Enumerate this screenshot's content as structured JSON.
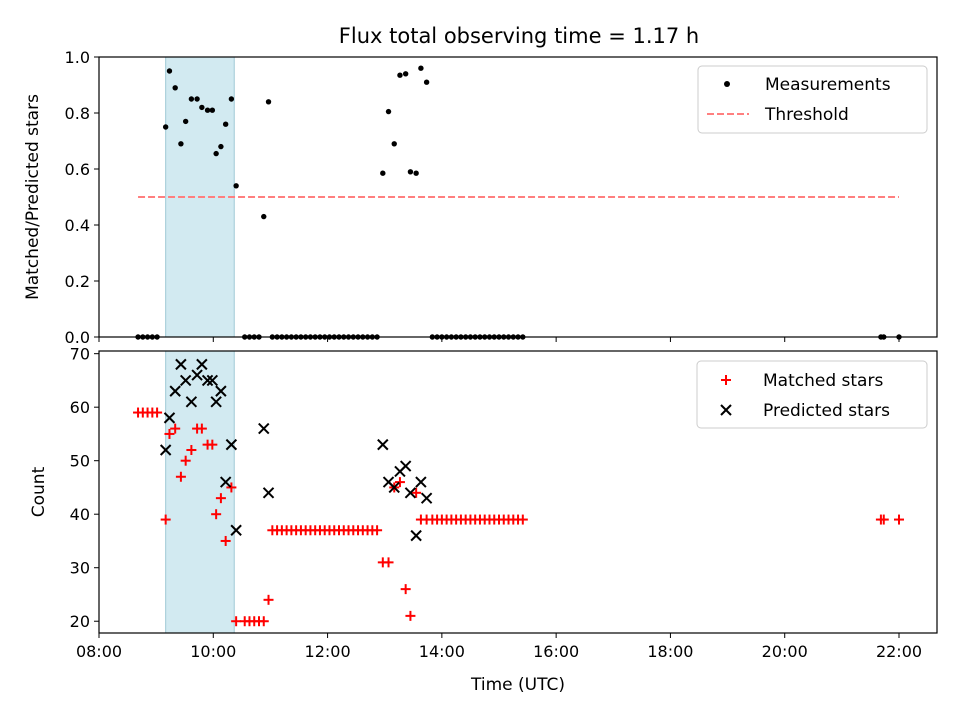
{
  "chart_data": [
    {
      "type": "scatter",
      "title": "Flux total observing time = 1.17 h",
      "xlabel": "",
      "ylabel": "Matched/Predicted stars",
      "ylim": [
        0.0,
        1.0
      ],
      "xlim": [
        "08:00",
        "22:00"
      ],
      "highlight_interval": {
        "start": "09:10",
        "end": "10:22",
        "color": "#add8e6"
      },
      "legend": "top-right",
      "series": [
        {
          "name": "Measurements",
          "marker": "dot",
          "color": "#000000",
          "x": [
            "08:41",
            "08:46",
            "08:51",
            "08:56",
            "09:01",
            "09:10",
            "09:14",
            "09:20",
            "09:26",
            "09:31",
            "09:37",
            "09:43",
            "09:48",
            "09:54",
            "09:59",
            "10:03",
            "10:08",
            "10:13",
            "10:19",
            "10:24",
            "10:33",
            "10:38",
            "10:43",
            "10:48",
            "10:53",
            "10:58",
            "11:02",
            "11:07",
            "11:12",
            "11:17",
            "11:22",
            "11:27",
            "11:32",
            "11:37",
            "11:42",
            "11:47",
            "11:52",
            "11:57",
            "12:02",
            "12:07",
            "12:12",
            "12:17",
            "12:22",
            "12:27",
            "12:32",
            "12:37",
            "12:42",
            "12:47",
            "12:52",
            "12:58",
            "13:04",
            "13:10",
            "13:16",
            "13:22",
            "13:27",
            "13:33",
            "13:38",
            "13:44",
            "13:50",
            "13:55",
            "14:00",
            "14:05",
            "14:10",
            "14:15",
            "14:20",
            "14:25",
            "14:30",
            "14:35",
            "14:40",
            "14:45",
            "14:50",
            "14:55",
            "15:00",
            "15:05",
            "15:10",
            "15:15",
            "15:20",
            "15:25",
            "21:41",
            "21:44",
            "22:00"
          ],
          "y": [
            0.0,
            0.0,
            0.0,
            0.0,
            0.0,
            0.75,
            0.95,
            0.89,
            0.69,
            0.77,
            0.85,
            0.85,
            0.82,
            0.81,
            0.81,
            0.655,
            0.68,
            0.76,
            0.85,
            0.54,
            0.0,
            0.0,
            0.0,
            0.0,
            0.43,
            0.84,
            0.0,
            0.0,
            0.0,
            0.0,
            0.0,
            0.0,
            0.0,
            0.0,
            0.0,
            0.0,
            0.0,
            0.0,
            0.0,
            0.0,
            0.0,
            0.0,
            0.0,
            0.0,
            0.0,
            0.0,
            0.0,
            0.0,
            0.0,
            0.585,
            0.805,
            0.69,
            0.935,
            0.94,
            0.59,
            0.585,
            0.96,
            0.91,
            0.0,
            0.0,
            0.0,
            0.0,
            0.0,
            0.0,
            0.0,
            0.0,
            0.0,
            0.0,
            0.0,
            0.0,
            0.0,
            0.0,
            0.0,
            0.0,
            0.0,
            0.0,
            0.0,
            0.0,
            0.0,
            0.0,
            0.0
          ]
        },
        {
          "name": "Threshold",
          "marker": "dashed-line",
          "color": "#ff7f7f",
          "x": [
            "08:41",
            "22:00"
          ],
          "y": [
            0.5,
            0.5
          ]
        }
      ],
      "yticks": [
        "0.0",
        "0.2",
        "0.4",
        "0.6",
        "0.8",
        "1.0"
      ]
    },
    {
      "type": "scatter",
      "title": "",
      "xlabel": "Time (UTC)",
      "ylabel": "Count",
      "ylim": [
        17.8,
        70.5
      ],
      "xlim": [
        "08:00",
        "22:00"
      ],
      "highlight_interval": {
        "start": "09:10",
        "end": "10:22",
        "color": "#add8e6"
      },
      "legend": "top-right",
      "series": [
        {
          "name": "Matched stars",
          "marker": "plus",
          "color": "#ff0000",
          "x": [
            "08:41",
            "08:46",
            "08:51",
            "08:56",
            "09:01",
            "09:10",
            "09:14",
            "09:20",
            "09:26",
            "09:31",
            "09:37",
            "09:43",
            "09:48",
            "09:54",
            "09:59",
            "10:03",
            "10:08",
            "10:13",
            "10:19",
            "10:24",
            "10:33",
            "10:38",
            "10:43",
            "10:48",
            "10:53",
            "10:58",
            "11:02",
            "11:07",
            "11:12",
            "11:17",
            "11:22",
            "11:27",
            "11:32",
            "11:37",
            "11:42",
            "11:47",
            "11:52",
            "11:57",
            "12:02",
            "12:07",
            "12:12",
            "12:17",
            "12:22",
            "12:27",
            "12:32",
            "12:37",
            "12:42",
            "12:47",
            "12:52",
            "12:58",
            "13:04",
            "13:10",
            "13:16",
            "13:22",
            "13:27",
            "13:33",
            "13:38",
            "13:44",
            "13:50",
            "13:55",
            "14:00",
            "14:05",
            "14:10",
            "14:15",
            "14:20",
            "14:25",
            "14:30",
            "14:35",
            "14:40",
            "14:45",
            "14:50",
            "14:55",
            "15:00",
            "15:05",
            "15:10",
            "15:15",
            "15:20",
            "15:25",
            "21:41",
            "21:44",
            "22:00"
          ],
          "y": [
            59,
            59,
            59,
            59,
            59,
            39,
            55,
            56,
            47,
            50,
            52,
            56,
            56,
            53,
            53,
            40,
            43,
            35,
            45,
            20,
            20,
            20,
            20,
            20,
            20,
            24,
            37,
            37,
            37,
            37,
            37,
            37,
            37,
            37,
            37,
            37,
            37,
            37,
            37,
            37,
            37,
            37,
            37,
            37,
            37,
            37,
            37,
            37,
            37,
            31,
            31,
            45,
            46,
            26,
            21,
            44,
            39,
            39,
            39,
            39,
            39,
            39,
            39,
            39,
            39,
            39,
            39,
            39,
            39,
            39,
            39,
            39,
            39,
            39,
            39,
            39,
            39,
            39,
            39,
            39,
            39
          ]
        },
        {
          "name": "Predicted stars",
          "marker": "x",
          "color": "#000000",
          "x": [
            "09:10",
            "09:14",
            "09:20",
            "09:26",
            "09:31",
            "09:37",
            "09:43",
            "09:48",
            "09:54",
            "09:59",
            "10:03",
            "10:08",
            "10:13",
            "10:19",
            "10:24",
            "10:53",
            "10:58",
            "12:58",
            "13:04",
            "13:10",
            "13:16",
            "13:22",
            "13:27",
            "13:33",
            "13:38",
            "13:44"
          ],
          "y": [
            52,
            58,
            63,
            68,
            65,
            61,
            66,
            68,
            65,
            65,
            61,
            63,
            46,
            53,
            37,
            56,
            44,
            53,
            46,
            45,
            48,
            49,
            44,
            36,
            46,
            43
          ]
        }
      ],
      "yticks": [
        "20",
        "30",
        "40",
        "50",
        "60",
        "70"
      ],
      "xticks": [
        "08:00",
        "10:00",
        "12:00",
        "14:00",
        "16:00",
        "18:00",
        "20:00",
        "22:00"
      ]
    }
  ]
}
